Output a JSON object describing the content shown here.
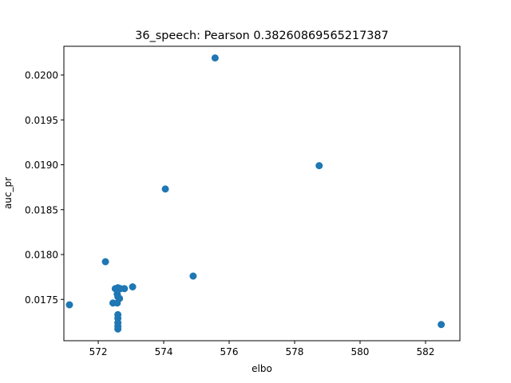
{
  "chart_data": {
    "type": "scatter",
    "title": "36_speech: Pearson 0.38260869565217387",
    "xlabel": "elbo",
    "ylabel": "auc_pr",
    "xlim": [
      570.95,
      583.05
    ],
    "ylim": [
      0.01704,
      0.02032
    ],
    "xticks": [
      572,
      574,
      576,
      578,
      580,
      582
    ],
    "xtick_labels": [
      "572",
      "574",
      "576",
      "578",
      "580",
      "582"
    ],
    "yticks": [
      0.0175,
      0.018,
      0.0185,
      0.019,
      0.0195,
      0.02
    ],
    "ytick_labels": [
      "0.0175",
      "0.0180",
      "0.0185",
      "0.0190",
      "0.0195",
      "0.0200"
    ],
    "grid": false,
    "marker_color": "#1f77b4",
    "points": [
      {
        "x": 575.57,
        "y": 0.02019
      },
      {
        "x": 578.75,
        "y": 0.01899
      },
      {
        "x": 574.05,
        "y": 0.01873
      },
      {
        "x": 572.22,
        "y": 0.01792
      },
      {
        "x": 574.9,
        "y": 0.01776
      },
      {
        "x": 573.05,
        "y": 0.01764
      },
      {
        "x": 572.52,
        "y": 0.01762
      },
      {
        "x": 572.6,
        "y": 0.01763
      },
      {
        "x": 572.68,
        "y": 0.01762
      },
      {
        "x": 572.8,
        "y": 0.01762
      },
      {
        "x": 572.58,
        "y": 0.01756
      },
      {
        "x": 572.6,
        "y": 0.01753
      },
      {
        "x": 572.65,
        "y": 0.01751
      },
      {
        "x": 572.45,
        "y": 0.01746
      },
      {
        "x": 572.58,
        "y": 0.01746
      },
      {
        "x": 571.12,
        "y": 0.01744
      },
      {
        "x": 572.6,
        "y": 0.01733
      },
      {
        "x": 572.6,
        "y": 0.01729
      },
      {
        "x": 572.6,
        "y": 0.01724
      },
      {
        "x": 572.6,
        "y": 0.0172
      },
      {
        "x": 572.6,
        "y": 0.01717
      },
      {
        "x": 582.48,
        "y": 0.01722
      }
    ]
  }
}
